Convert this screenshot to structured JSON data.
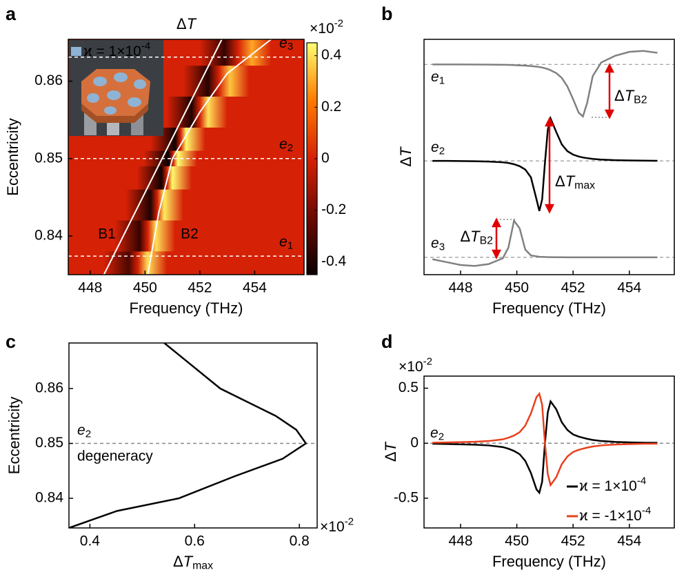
{
  "chart_data": [
    {
      "type": "heatmap",
      "panel": "a",
      "title": {
        "pre": "Δ",
        "it": "T"
      },
      "xlabel": "Frequency (THz)",
      "ylabel": "Eccentricity",
      "xlim": [
        447.2,
        455.8
      ],
      "xticks": [
        448,
        450,
        452,
        454
      ],
      "ylim": [
        0.835,
        0.8654
      ],
      "yticks": [
        0.84,
        0.85,
        0.86
      ],
      "rows": {
        "ecc": [
          0.836,
          0.84,
          0.844,
          0.848,
          0.85,
          0.852,
          0.856,
          0.86,
          0.864
        ],
        "dip_freq": [
          449.4,
          449.8,
          450.2,
          450.6,
          450.85,
          451.1,
          451.7,
          452.3,
          452.9
        ],
        "peak_freq": [
          450.1,
          450.4,
          450.7,
          451.0,
          451.2,
          451.5,
          452.3,
          453.1,
          453.9
        ],
        "dip_value": [
          -0.3,
          -0.35,
          -0.4,
          -0.43,
          -0.45,
          -0.43,
          -0.4,
          -0.38,
          -0.35
        ],
        "peak_value": [
          0.4,
          0.4,
          0.42,
          0.44,
          0.45,
          0.44,
          0.4,
          0.35,
          0.3
        ]
      },
      "bands": [
        {
          "name": "B1",
          "color": "#ffffff",
          "x": [
            448.5,
            452.8
          ],
          "values": [
            0.835,
            0.8654
          ]
        },
        {
          "name": "B2",
          "color": "#ffffff",
          "x": [
            450.1,
            450.5,
            451.0,
            452.0,
            453.0,
            454.6
          ],
          "values": [
            0.835,
            0.843,
            0.85,
            0.856,
            0.861,
            0.8654
          ]
        }
      ],
      "levels": [
        {
          "it": "e",
          "sub": "1",
          "value": 0.8374
        },
        {
          "it": "e",
          "sub": "2",
          "value": 0.85
        },
        {
          "it": "e",
          "sub": "3",
          "value": 0.8631
        }
      ],
      "colorbar": {
        "multiplier": {
          "text": "×10",
          "sup": "-2"
        },
        "lim": [
          -0.45,
          0.45
        ],
        "ticks": [
          0.4,
          0.2,
          0,
          -0.2,
          -0.4
        ],
        "colormap": [
          "#0a0000",
          "#6e0a00",
          "#d52106",
          "#ff7a00",
          "#ffff70"
        ]
      },
      "inset_label": {
        "text": "ϰ = 1×10",
        "sup": "-4"
      }
    },
    {
      "type": "line",
      "panel": "b",
      "xlabel": "Frequency (THz)",
      "ylabel": {
        "pre": "Δ",
        "it": "T"
      },
      "xlim": [
        446.7,
        455.6
      ],
      "xticks": [
        448,
        450,
        452,
        454
      ],
      "ylim": [
        -0.18,
        2.26
      ],
      "x": [
        447,
        447.5,
        448,
        448.5,
        449,
        449.5,
        449.7,
        449.9,
        450.1,
        450.3,
        450.5,
        450.7,
        450.8,
        450.9,
        451,
        451.1,
        451.2,
        451.4,
        451.6,
        451.8,
        452,
        452.2,
        452.35,
        452.5,
        452.7,
        453,
        453.5,
        454,
        454.5,
        455
      ],
      "series": [
        {
          "name": {
            "it": "e",
            "sub": "1"
          },
          "color": "#808080",
          "baseline": 0,
          "values": [
            -0.02,
            -0.05,
            -0.08,
            -0.09,
            -0.07,
            -0.01,
            0.1,
            0.38,
            0.3,
            0.08,
            0.02,
            0.01,
            0.005,
            0.004,
            0.003,
            0.002,
            0.002,
            0.001,
            0.001,
            0,
            0,
            0,
            0,
            0,
            0,
            0,
            0,
            0,
            0,
            0
          ]
        },
        {
          "name": {
            "it": "e",
            "sub": "2"
          },
          "color": "#000000",
          "baseline": 1,
          "values": [
            1,
            1,
            0.998,
            0.996,
            0.993,
            0.985,
            0.978,
            0.965,
            0.945,
            0.91,
            0.83,
            0.6,
            0.48,
            0.6,
            0.98,
            1.32,
            1.44,
            1.3,
            1.17,
            1.1,
            1.065,
            1.045,
            1.035,
            1.028,
            1.02,
            1.013,
            1.007,
            1.004,
            1.002,
            1.001
          ]
        },
        {
          "name": {
            "it": "e",
            "sub": "3"
          },
          "color": "#808080",
          "baseline": 2,
          "values": [
            2,
            2,
            2,
            1.999,
            1.998,
            1.996,
            1.995,
            1.993,
            1.99,
            1.987,
            1.983,
            1.977,
            1.973,
            1.968,
            1.96,
            1.952,
            1.94,
            1.91,
            1.86,
            1.77,
            1.64,
            1.5,
            1.46,
            1.6,
            1.88,
            2.02,
            2.09,
            2.13,
            2.14,
            2.12
          ]
        }
      ],
      "annotations": [
        {
          "pre": "Δ",
          "it": "T",
          "sub": "B2"
        },
        {
          "pre": "Δ",
          "it": "T",
          "sub": "max"
        },
        {
          "pre": "Δ",
          "it": "T",
          "sub": "B2"
        }
      ]
    },
    {
      "type": "line",
      "panel": "c",
      "xlabel": {
        "pre": "Δ",
        "it": "T",
        "sub": "max"
      },
      "ylabel": "Eccentricity",
      "xlim": [
        0.36,
        0.834
      ],
      "xticks": [
        0.4,
        0.6,
        0.8
      ],
      "ylim": [
        0.8346,
        0.8683
      ],
      "yticks": [
        0.84,
        0.85,
        0.86
      ],
      "multiplier": {
        "text": "×10",
        "sup": "-2"
      },
      "series": [
        {
          "color": "#000000",
          "x": [
            0.36,
            0.452,
            0.57,
            0.676,
            0.768,
            0.8125,
            0.794,
            0.755,
            0.649,
            0.542
          ],
          "values": [
            0.8346,
            0.8377,
            0.84,
            0.844,
            0.8472,
            0.85,
            0.8525,
            0.855,
            0.86,
            0.8683
          ]
        }
      ],
      "hline": 0.85,
      "hline_labels": [
        {
          "it": "e",
          "sub": "2"
        },
        "degeneracy"
      ]
    },
    {
      "type": "line",
      "panel": "d",
      "xlabel": "Frequency (THz)",
      "ylabel": {
        "pre": "Δ",
        "it": "T"
      },
      "xlim": [
        446.7,
        455.6
      ],
      "xticks": [
        448,
        450,
        452,
        454
      ],
      "ylim": [
        -0.77,
        0.61
      ],
      "yticks": [
        0.5,
        0,
        -0.5
      ],
      "multiplier": {
        "text": "×10",
        "sup": "-2"
      },
      "x": [
        447,
        447.5,
        448,
        448.5,
        449,
        449.5,
        449.7,
        449.9,
        450.1,
        450.3,
        450.5,
        450.7,
        450.8,
        450.9,
        451,
        451.1,
        451.2,
        451.4,
        451.6,
        451.8,
        452,
        452.2,
        452.35,
        452.5,
        452.7,
        453,
        453.5,
        454,
        454.5,
        455
      ],
      "series": [
        {
          "name": {
            "text": "ϰ = 1×10",
            "sup": "-4"
          },
          "color": "#000000",
          "values": [
            -0.005,
            -0.007,
            -0.01,
            -0.013,
            -0.02,
            -0.035,
            -0.05,
            -0.07,
            -0.1,
            -0.16,
            -0.27,
            -0.42,
            -0.45,
            -0.35,
            0,
            0.28,
            0.38,
            0.31,
            0.19,
            0.12,
            0.08,
            0.06,
            0.05,
            0.04,
            0.03,
            0.02,
            0.012,
            0.008,
            0.005,
            0.004
          ]
        },
        {
          "name": {
            "text": "ϰ = -1×10",
            "sup": "-4"
          },
          "color": "#e8401c",
          "values": [
            0.005,
            0.007,
            0.01,
            0.013,
            0.02,
            0.035,
            0.05,
            0.07,
            0.1,
            0.16,
            0.27,
            0.42,
            0.45,
            0.35,
            0,
            -0.28,
            -0.38,
            -0.31,
            -0.19,
            -0.12,
            -0.08,
            -0.06,
            -0.05,
            -0.04,
            -0.03,
            -0.02,
            -0.012,
            -0.008,
            -0.005,
            -0.004
          ]
        }
      ],
      "hline": 0,
      "label": {
        "it": "e",
        "sub": "2"
      }
    }
  ]
}
